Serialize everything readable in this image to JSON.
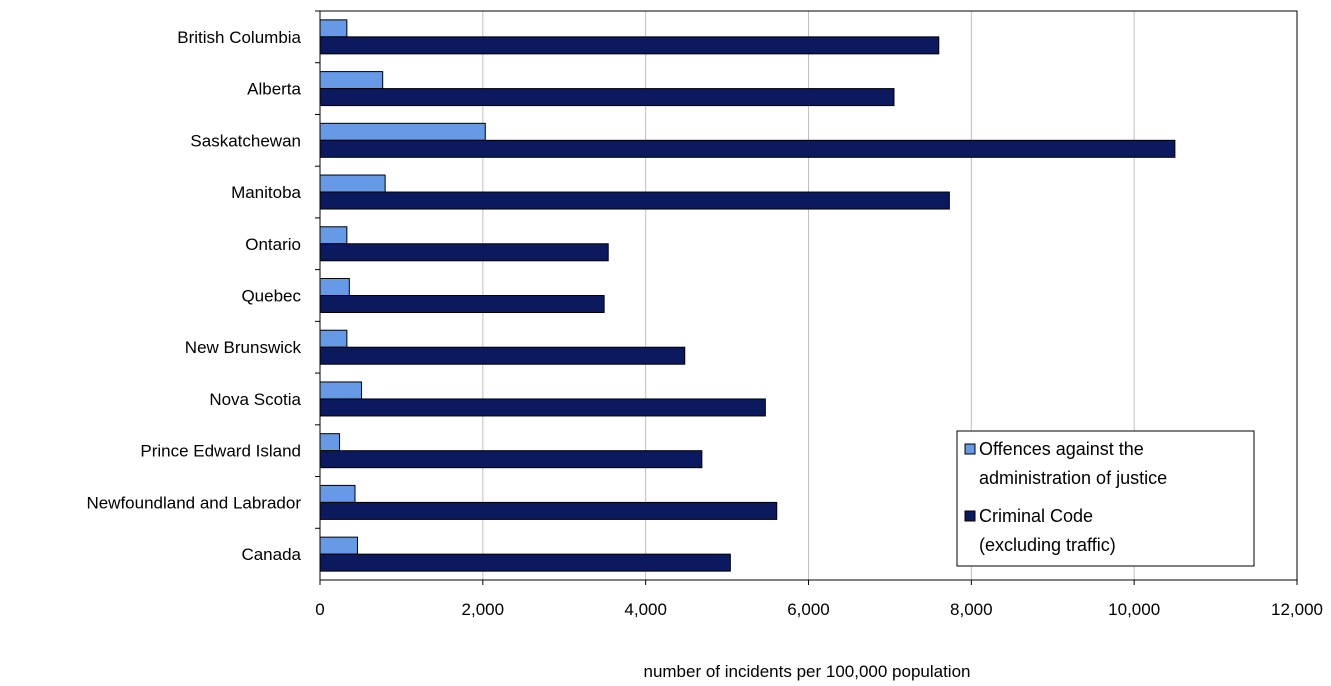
{
  "chart_data": {
    "type": "bar",
    "orientation": "horizontal",
    "title": "",
    "xlabel": "number of incidents per 100,000 population",
    "ylabel": "",
    "xlim": [
      0,
      12000
    ],
    "x_ticks": [
      0,
      2000,
      4000,
      6000,
      8000,
      10000,
      12000
    ],
    "x_tick_labels": [
      "0",
      "2,000",
      "4,000",
      "6,000",
      "8,000",
      "10,000",
      "12,000"
    ],
    "grid": "vertical",
    "legend_position": "bottom-right",
    "categories": [
      "British Columbia",
      "Alberta",
      "Saskatchewan",
      "Manitoba",
      "Ontario",
      "Quebec",
      "New Brunswick",
      "Nova Scotia",
      "Prince Edward Island",
      "Newfoundland and Labrador",
      "Canada"
    ],
    "series": [
      {
        "name": "Offences against the administration of justice",
        "legend_lines": [
          "Offences against the",
          "administration of justice"
        ],
        "color": "#6699e6",
        "values": [
          330,
          770,
          2030,
          800,
          330,
          360,
          330,
          510,
          240,
          430,
          460
        ]
      },
      {
        "name": "Criminal Code (excluding traffic)",
        "legend_lines": [
          "Criminal Code",
          "(excluding traffic)"
        ],
        "color": "#0b1a5e",
        "values": [
          7600,
          7050,
          10500,
          7730,
          3540,
          3490,
          4480,
          5470,
          4690,
          5610,
          5040
        ]
      }
    ]
  }
}
